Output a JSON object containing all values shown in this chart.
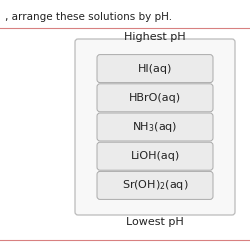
{
  "title_top": "Highest pH",
  "title_bottom": "Lowest pH",
  "items": [
    "HI(aq)",
    "HBrO(aq)",
    "NH$_3$(aq)",
    "LiOH(aq)",
    "Sr(OH)$_2$(aq)"
  ],
  "header_text": ", arrange these solutions by pH.",
  "box_bg": "#ebebeb",
  "box_edge": "#aaaaaa",
  "outer_box_bg": "#f8f8f8",
  "outer_box_edge": "#bbbbbb",
  "text_color": "#222222",
  "fig_bg": "#ffffff",
  "line_color": "#d88080",
  "font_size": 8,
  "label_font_size": 8,
  "header_font_size": 7.5
}
